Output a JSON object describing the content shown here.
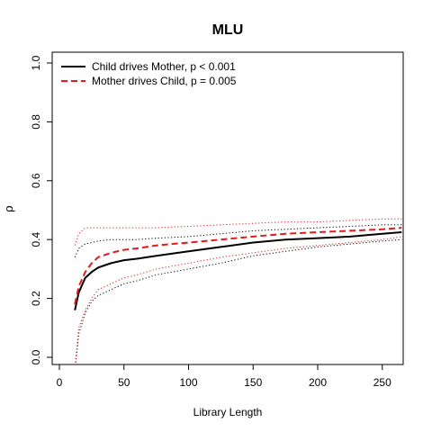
{
  "chart_data": {
    "type": "line",
    "title": "MLU",
    "xlabel": "Library Length",
    "ylabel": "ρ",
    "xlim": [
      0,
      265
    ],
    "ylim": [
      0.0,
      1.0
    ],
    "xticks": [
      0,
      50,
      100,
      150,
      200,
      250
    ],
    "yticks": [
      0.0,
      0.2,
      0.4,
      0.6,
      0.8,
      1.0
    ],
    "xtick_labels": [
      "0",
      "50",
      "100",
      "150",
      "200",
      "250"
    ],
    "ytick_labels": [
      "0.0",
      "0.2",
      "0.4",
      "0.6",
      "0.8",
      "1.0"
    ],
    "grid": false,
    "legend_position": "top-left",
    "x": [
      12,
      15,
      20,
      25,
      30,
      40,
      50,
      60,
      75,
      100,
      125,
      150,
      175,
      200,
      225,
      250,
      265
    ],
    "series": [
      {
        "name": "Child drives Mother, p < 0.001",
        "role": "mean",
        "color": "#000000",
        "values": [
          0.16,
          0.22,
          0.27,
          0.29,
          0.305,
          0.32,
          0.33,
          0.335,
          0.345,
          0.36,
          0.375,
          0.39,
          0.4,
          0.405,
          0.41,
          0.42,
          0.425
        ]
      },
      {
        "name": "",
        "role": "upper",
        "color": "#000000",
        "values": [
          0.34,
          0.37,
          0.385,
          0.39,
          0.395,
          0.4,
          0.4,
          0.4,
          0.405,
          0.41,
          0.42,
          0.43,
          0.435,
          0.44,
          0.445,
          0.45,
          0.45
        ]
      },
      {
        "name": "",
        "role": "lower",
        "color": "#000000",
        "values": [
          -0.05,
          0.08,
          0.15,
          0.19,
          0.21,
          0.23,
          0.25,
          0.26,
          0.28,
          0.3,
          0.32,
          0.345,
          0.36,
          0.375,
          0.385,
          0.395,
          0.4
        ]
      },
      {
        "name": "Mother drives Child, p = 0.005",
        "role": "mean",
        "color": "#e31a1c",
        "values": [
          0.18,
          0.24,
          0.29,
          0.32,
          0.34,
          0.355,
          0.365,
          0.37,
          0.38,
          0.39,
          0.4,
          0.41,
          0.42,
          0.425,
          0.43,
          0.435,
          0.44
        ]
      },
      {
        "name": "",
        "role": "upper",
        "color": "#e31a1c",
        "values": [
          0.38,
          0.42,
          0.44,
          0.44,
          0.44,
          0.44,
          0.44,
          0.44,
          0.44,
          0.445,
          0.45,
          0.455,
          0.46,
          0.46,
          0.465,
          0.47,
          0.47
        ]
      },
      {
        "name": "",
        "role": "lower",
        "color": "#e31a1c",
        "values": [
          -0.04,
          0.1,
          0.16,
          0.2,
          0.23,
          0.25,
          0.27,
          0.28,
          0.3,
          0.32,
          0.34,
          0.355,
          0.37,
          0.38,
          0.39,
          0.4,
          0.41
        ]
      }
    ]
  }
}
